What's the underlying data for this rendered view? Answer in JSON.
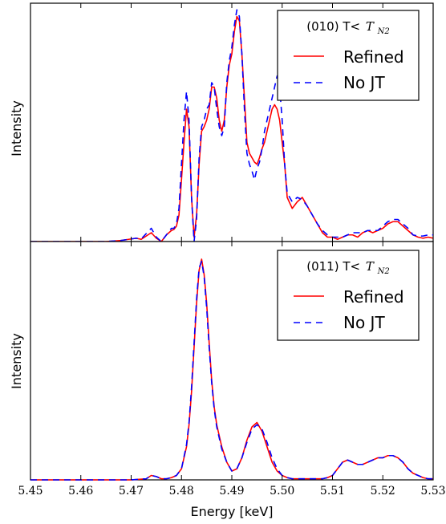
{
  "chart_data": [
    {
      "type": "line",
      "title": "",
      "xlabel": "",
      "ylabel": "Intensity",
      "xlim": [
        5.45,
        5.53
      ],
      "ylim": [
        0,
        1.08
      ],
      "grid": false,
      "legend_position": "top-right",
      "legend_title": "(010) T< T_N2",
      "legend_title_prefix": "(010) T<",
      "legend_title_symbol": "T",
      "legend_title_subscript": "N2",
      "series": [
        {
          "name": "Refined",
          "color": "#ff0000",
          "dash": "solid",
          "x": [
            5.45,
            5.455,
            5.46,
            5.465,
            5.468,
            5.471,
            5.472,
            5.474,
            5.475,
            5.476,
            5.477,
            5.478,
            5.4785,
            5.479,
            5.4795,
            5.48,
            5.4805,
            5.481,
            5.4815,
            5.482,
            5.4825,
            5.483,
            5.4835,
            5.484,
            5.4845,
            5.485,
            5.4855,
            5.486,
            5.4865,
            5.487,
            5.4875,
            5.488,
            5.4885,
            5.489,
            5.4895,
            5.49,
            5.4905,
            5.491,
            5.4915,
            5.492,
            5.4925,
            5.493,
            5.4935,
            5.494,
            5.4945,
            5.495,
            5.4955,
            5.496,
            5.4965,
            5.497,
            5.4975,
            5.498,
            5.4985,
            5.499,
            5.4995,
            5.5,
            5.5005,
            5.501,
            5.502,
            5.503,
            5.504,
            5.505,
            5.506,
            5.507,
            5.508,
            5.509,
            5.51,
            5.511,
            5.512,
            5.513,
            5.514,
            5.515,
            5.516,
            5.517,
            5.518,
            5.519,
            5.52,
            5.521,
            5.522,
            5.523,
            5.524,
            5.525,
            5.526,
            5.527,
            5.528,
            5.529,
            5.53
          ],
          "values": [
            0.0,
            0.0,
            0.0,
            0.0,
            0.005,
            0.015,
            0.01,
            0.04,
            0.015,
            0.0,
            0.03,
            0.05,
            0.055,
            0.07,
            0.12,
            0.28,
            0.45,
            0.6,
            0.52,
            0.2,
            0.02,
            0.12,
            0.35,
            0.5,
            0.52,
            0.55,
            0.6,
            0.7,
            0.7,
            0.65,
            0.55,
            0.5,
            0.55,
            0.7,
            0.8,
            0.85,
            0.95,
            1.02,
            1.0,
            0.85,
            0.65,
            0.45,
            0.4,
            0.38,
            0.36,
            0.35,
            0.38,
            0.42,
            0.45,
            0.5,
            0.55,
            0.6,
            0.62,
            0.6,
            0.55,
            0.45,
            0.35,
            0.2,
            0.15,
            0.18,
            0.2,
            0.16,
            0.12,
            0.08,
            0.04,
            0.02,
            0.02,
            0.01,
            0.02,
            0.03,
            0.03,
            0.02,
            0.04,
            0.05,
            0.04,
            0.05,
            0.06,
            0.08,
            0.09,
            0.09,
            0.07,
            0.05,
            0.03,
            0.02,
            0.015,
            0.02,
            0.015
          ]
        },
        {
          "name": "No JT",
          "color": "#0000ff",
          "dash": "dashed",
          "x": [
            5.45,
            5.455,
            5.46,
            5.465,
            5.468,
            5.471,
            5.472,
            5.474,
            5.475,
            5.476,
            5.477,
            5.478,
            5.4785,
            5.479,
            5.4795,
            5.48,
            5.4805,
            5.481,
            5.4815,
            5.482,
            5.4825,
            5.483,
            5.4835,
            5.484,
            5.4845,
            5.485,
            5.4855,
            5.486,
            5.4865,
            5.487,
            5.4875,
            5.488,
            5.4885,
            5.489,
            5.4895,
            5.49,
            5.4905,
            5.491,
            5.4915,
            5.492,
            5.4925,
            5.493,
            5.4935,
            5.494,
            5.4945,
            5.495,
            5.4955,
            5.496,
            5.4965,
            5.497,
            5.4975,
            5.498,
            5.4985,
            5.499,
            5.4995,
            5.5,
            5.5005,
            5.501,
            5.502,
            5.503,
            5.504,
            5.505,
            5.506,
            5.507,
            5.508,
            5.509,
            5.51,
            5.511,
            5.512,
            5.513,
            5.514,
            5.515,
            5.516,
            5.517,
            5.518,
            5.519,
            5.52,
            5.521,
            5.522,
            5.523,
            5.524,
            5.525,
            5.526,
            5.527,
            5.528,
            5.529,
            5.53
          ],
          "values": [
            0.0,
            0.0,
            0.0,
            0.0,
            0.005,
            0.015,
            0.012,
            0.06,
            0.02,
            0.0,
            0.03,
            0.06,
            0.06,
            0.08,
            0.15,
            0.35,
            0.55,
            0.68,
            0.55,
            0.2,
            0.0,
            0.1,
            0.38,
            0.52,
            0.55,
            0.6,
            0.62,
            0.72,
            0.7,
            0.6,
            0.52,
            0.48,
            0.52,
            0.72,
            0.82,
            0.88,
            0.98,
            1.05,
            1.02,
            0.85,
            0.6,
            0.4,
            0.35,
            0.32,
            0.28,
            0.33,
            0.36,
            0.42,
            0.5,
            0.55,
            0.6,
            0.65,
            0.7,
            0.75,
            0.7,
            0.55,
            0.35,
            0.22,
            0.18,
            0.2,
            0.19,
            0.16,
            0.12,
            0.08,
            0.05,
            0.03,
            0.02,
            0.02,
            0.02,
            0.03,
            0.04,
            0.04,
            0.04,
            0.05,
            0.05,
            0.05,
            0.07,
            0.09,
            0.1,
            0.1,
            0.08,
            0.06,
            0.03,
            0.025,
            0.025,
            0.03,
            0.03
          ]
        }
      ]
    },
    {
      "type": "line",
      "title": "",
      "xlabel": "Energy [keV]",
      "ylabel": "Intensity",
      "xlim": [
        5.45,
        5.53
      ],
      "ylim": [
        0,
        1.08
      ],
      "grid": false,
      "legend_position": "top-right",
      "legend_title": "(011) T< T_N2",
      "legend_title_prefix": "(011) T<",
      "legend_title_symbol": "T",
      "legend_title_subscript": "N2",
      "x_ticks": [
        "5.45",
        "5.46",
        "5.47",
        "5.48",
        "5.49",
        "5.50",
        "5.51",
        "5.52",
        "5.53"
      ],
      "series": [
        {
          "name": "Refined",
          "color": "#ff0000",
          "dash": "solid",
          "x": [
            5.45,
            5.46,
            5.47,
            5.473,
            5.474,
            5.475,
            5.476,
            5.477,
            5.478,
            5.479,
            5.48,
            5.481,
            5.4815,
            5.482,
            5.4825,
            5.483,
            5.4835,
            5.484,
            5.4845,
            5.485,
            5.4855,
            5.486,
            5.4865,
            5.487,
            5.4875,
            5.488,
            5.489,
            5.49,
            5.491,
            5.492,
            5.493,
            5.494,
            5.495,
            5.496,
            5.497,
            5.498,
            5.499,
            5.5,
            5.501,
            5.502,
            5.503,
            5.504,
            5.505,
            5.506,
            5.507,
            5.508,
            5.509,
            5.51,
            5.511,
            5.512,
            5.513,
            5.514,
            5.515,
            5.516,
            5.517,
            5.518,
            5.519,
            5.52,
            5.521,
            5.522,
            5.523,
            5.524,
            5.525,
            5.526,
            5.527,
            5.528,
            5.529,
            5.53
          ],
          "values": [
            0.0,
            0.0,
            0.0,
            0.005,
            0.02,
            0.015,
            0.005,
            0.005,
            0.01,
            0.02,
            0.05,
            0.15,
            0.25,
            0.4,
            0.6,
            0.8,
            0.95,
            1.0,
            0.93,
            0.8,
            0.62,
            0.45,
            0.33,
            0.25,
            0.2,
            0.15,
            0.08,
            0.04,
            0.05,
            0.1,
            0.18,
            0.24,
            0.26,
            0.22,
            0.15,
            0.08,
            0.04,
            0.02,
            0.01,
            0.005,
            0.005,
            0.005,
            0.005,
            0.005,
            0.005,
            0.005,
            0.01,
            0.02,
            0.05,
            0.08,
            0.09,
            0.08,
            0.07,
            0.07,
            0.08,
            0.09,
            0.1,
            0.1,
            0.11,
            0.11,
            0.1,
            0.08,
            0.05,
            0.03,
            0.02,
            0.01,
            0.005,
            0.005
          ]
        },
        {
          "name": "No JT",
          "color": "#0000ff",
          "dash": "dashed",
          "x": [
            5.45,
            5.46,
            5.47,
            5.473,
            5.474,
            5.475,
            5.476,
            5.477,
            5.478,
            5.479,
            5.48,
            5.481,
            5.4815,
            5.482,
            5.4825,
            5.483,
            5.4835,
            5.484,
            5.4845,
            5.485,
            5.4855,
            5.486,
            5.4865,
            5.487,
            5.4875,
            5.488,
            5.489,
            5.49,
            5.491,
            5.492,
            5.493,
            5.494,
            5.495,
            5.496,
            5.497,
            5.498,
            5.499,
            5.5,
            5.501,
            5.502,
            5.503,
            5.504,
            5.505,
            5.506,
            5.507,
            5.508,
            5.509,
            5.51,
            5.511,
            5.512,
            5.513,
            5.514,
            5.515,
            5.516,
            5.517,
            5.518,
            5.519,
            5.52,
            5.521,
            5.522,
            5.523,
            5.524,
            5.525,
            5.526,
            5.527,
            5.528,
            5.529,
            5.53
          ],
          "values": [
            0.0,
            0.0,
            0.0,
            0.005,
            0.02,
            0.015,
            0.005,
            0.005,
            0.01,
            0.02,
            0.05,
            0.16,
            0.26,
            0.42,
            0.62,
            0.82,
            0.96,
            0.99,
            0.92,
            0.78,
            0.6,
            0.44,
            0.32,
            0.24,
            0.19,
            0.14,
            0.08,
            0.04,
            0.05,
            0.1,
            0.17,
            0.23,
            0.25,
            0.23,
            0.17,
            0.1,
            0.05,
            0.02,
            0.01,
            0.005,
            0.005,
            0.005,
            0.005,
            0.005,
            0.005,
            0.005,
            0.01,
            0.02,
            0.05,
            0.08,
            0.09,
            0.08,
            0.07,
            0.07,
            0.08,
            0.09,
            0.1,
            0.1,
            0.11,
            0.11,
            0.1,
            0.08,
            0.05,
            0.03,
            0.02,
            0.01,
            0.005,
            0.005
          ]
        }
      ]
    }
  ]
}
